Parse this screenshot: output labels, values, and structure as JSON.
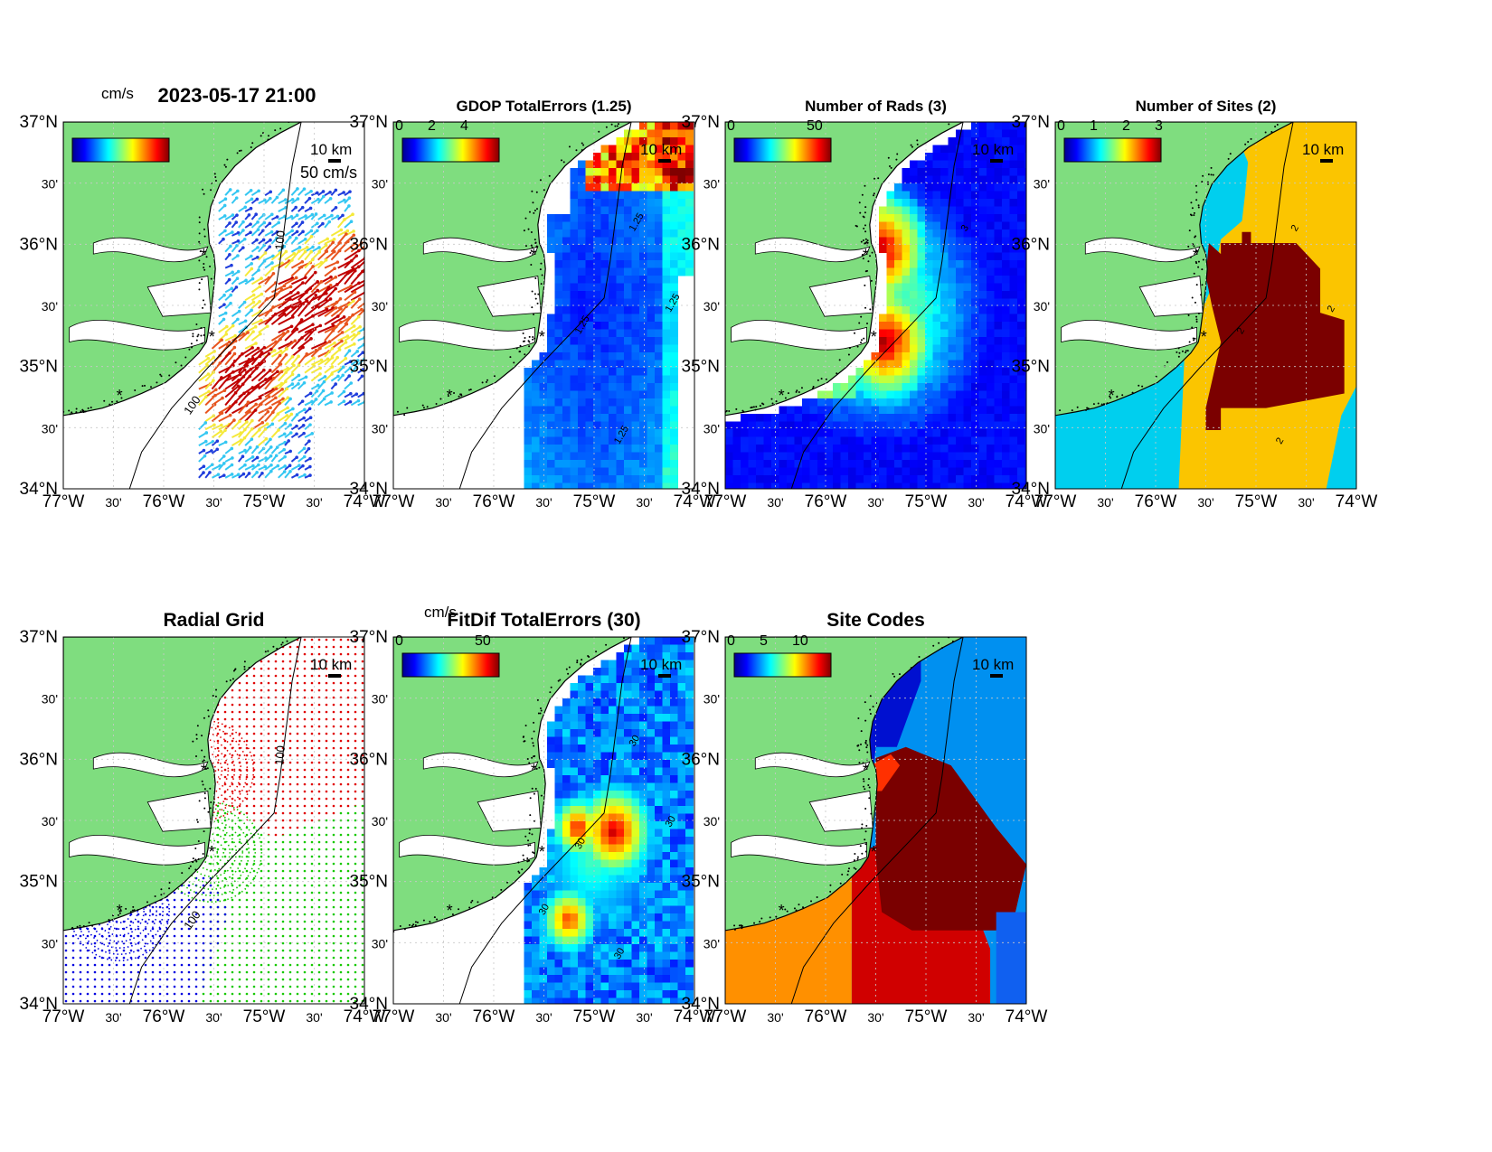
{
  "figure": {
    "timestamp": "2023-05-17 21:00",
    "lon_labels": [
      "77°W",
      "30'",
      "76°W",
      "30'",
      "75°W",
      "30'",
      "74°W"
    ],
    "lat_labels": [
      "37°N",
      "30'",
      "36°N",
      "30'",
      "35°N",
      "30'",
      "34°N"
    ],
    "scale_label": "10 km",
    "contour_100": "100"
  },
  "panels": [
    {
      "id": "currents",
      "title": "2023-05-17 21:00",
      "cbar_units": "cm/s",
      "cbar_ticks": [],
      "vector_scale_label": "50 cm/s",
      "colors": [
        "#1f3ddc",
        "#34c7f2",
        "#f5e93a",
        "#e8541e",
        "#c00000"
      ]
    },
    {
      "id": "gdop",
      "title": "GDOP TotalErrors (1.25)",
      "cbar_ticks": [
        "0",
        "2",
        "4"
      ],
      "contour_labels": [
        "1.25",
        "1.25",
        "1.25",
        "1.25"
      ]
    },
    {
      "id": "nrads",
      "title": "Number of Rads (3)",
      "cbar_ticks": [
        "0",
        "50"
      ],
      "contour_labels": [
        "3"
      ]
    },
    {
      "id": "nsites",
      "title": "Number of Sites (2)",
      "cbar_ticks": [
        "0",
        "1",
        "2",
        "3"
      ],
      "contour_labels": [
        "2",
        "2",
        "2",
        "2"
      ],
      "colors": {
        "one_site": "#00cfee",
        "two_sites": "#fbc500",
        "three_sites": "#7b0000"
      }
    },
    {
      "id": "radgrid",
      "title": "Radial Grid",
      "site_colors": [
        "#e00000",
        "#16c800",
        "#0000e0"
      ]
    },
    {
      "id": "fitdif",
      "title": "FitDif TotalErrors (30)",
      "cbar_units": "cm/s",
      "cbar_ticks": [
        "0",
        "50"
      ],
      "contour_labels": [
        "30",
        "30",
        "30",
        "30",
        "30"
      ]
    },
    {
      "id": "sitecodes",
      "title": "Site Codes",
      "cbar_ticks": [
        "0",
        "5",
        "10"
      ],
      "colors": [
        "#0010d0",
        "#0090f0",
        "#7a0000",
        "#ff3000",
        "#d00000",
        "#ff9000",
        "#1060f0"
      ]
    }
  ],
  "chart_data": {
    "type": "heatmap",
    "extent": {
      "lon": [
        -77,
        -74
      ],
      "lat": [
        34,
        37
      ]
    },
    "radar_sites": [
      {
        "lon": -75.6,
        "lat": 35.91
      },
      {
        "lon": -75.52,
        "lat": 35.24
      },
      {
        "lon": -76.44,
        "lat": 34.76
      }
    ],
    "colormap": "jet"
  }
}
